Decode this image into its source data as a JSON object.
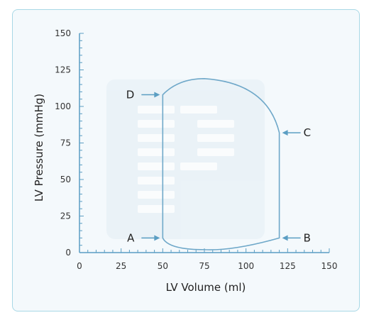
{
  "chart_data": {
    "type": "line",
    "xlabel": "LV Volume (ml)",
    "ylabel": "LV Pressure (mmHg)",
    "xlim": [
      0,
      150
    ],
    "ylim": [
      0,
      150
    ],
    "x_ticks": [
      "0",
      "25",
      "50",
      "75",
      "100",
      "125",
      "150"
    ],
    "y_ticks": [
      "0",
      "25",
      "50",
      "75",
      "100",
      "125",
      "150"
    ],
    "grid": false,
    "series": [
      {
        "values": [
          {
            "x": 50,
            "y": 10
          },
          {
            "x": 50,
            "y": 108
          },
          {
            "x": 75,
            "y": 119
          },
          {
            "x": 100,
            "y": 108
          },
          {
            "x": 120,
            "y": 82
          },
          {
            "x": 120,
            "y": 10
          },
          {
            "x": 75,
            "y": 2
          },
          {
            "x": 50,
            "y": 10
          }
        ]
      }
    ],
    "annotations": [
      {
        "label": "A",
        "x": 50,
        "y": 10,
        "side": "left"
      },
      {
        "label": "B",
        "x": 120,
        "y": 10,
        "side": "right"
      },
      {
        "label": "C",
        "x": 120,
        "y": 82,
        "side": "right"
      },
      {
        "label": "D",
        "x": 50,
        "y": 108,
        "side": "left"
      }
    ],
    "colors": {
      "line": "#6fa8c9",
      "axis": "#5b9ec3",
      "card_border": "#a8d8e6",
      "card_bg": "#f4f9fc"
    }
  }
}
